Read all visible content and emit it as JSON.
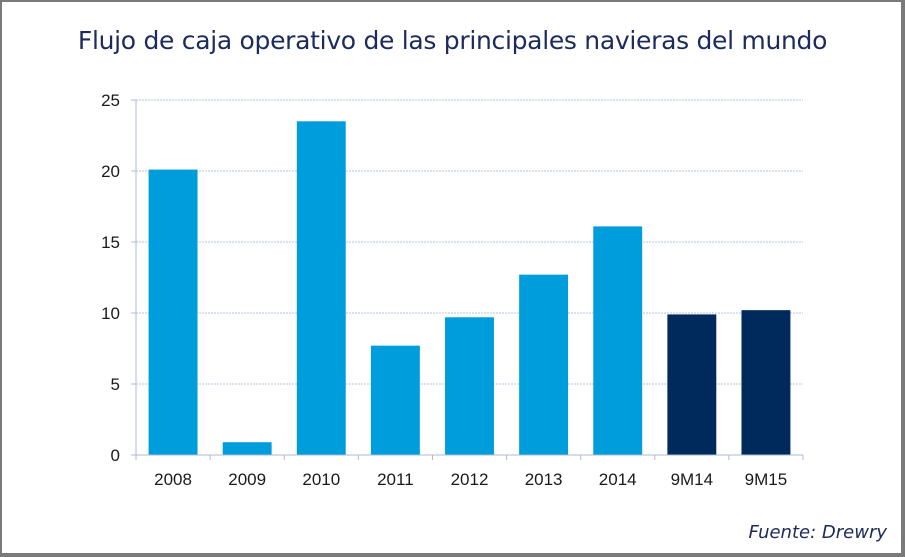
{
  "chart_data": {
    "type": "bar",
    "title": "Flujo de caja operativo de las principales navieras del mundo",
    "xlabel": "",
    "ylabel": "",
    "categories": [
      "2008",
      "2009",
      "2010",
      "2011",
      "2012",
      "2013",
      "2014",
      "9M14",
      "9M15"
    ],
    "values": [
      20.1,
      0.9,
      23.5,
      7.7,
      9.7,
      12.7,
      16.1,
      9.9,
      10.2
    ],
    "bar_colors": [
      "#009ddc",
      "#009ddc",
      "#009ddc",
      "#009ddc",
      "#009ddc",
      "#009ddc",
      "#009ddc",
      "#002a5c",
      "#002a5c"
    ],
    "ylim": [
      0,
      25
    ],
    "yticks": [
      0,
      5,
      10,
      15,
      20,
      25
    ],
    "grid": true,
    "legend": "none",
    "source": "Fuente: Drewry"
  }
}
